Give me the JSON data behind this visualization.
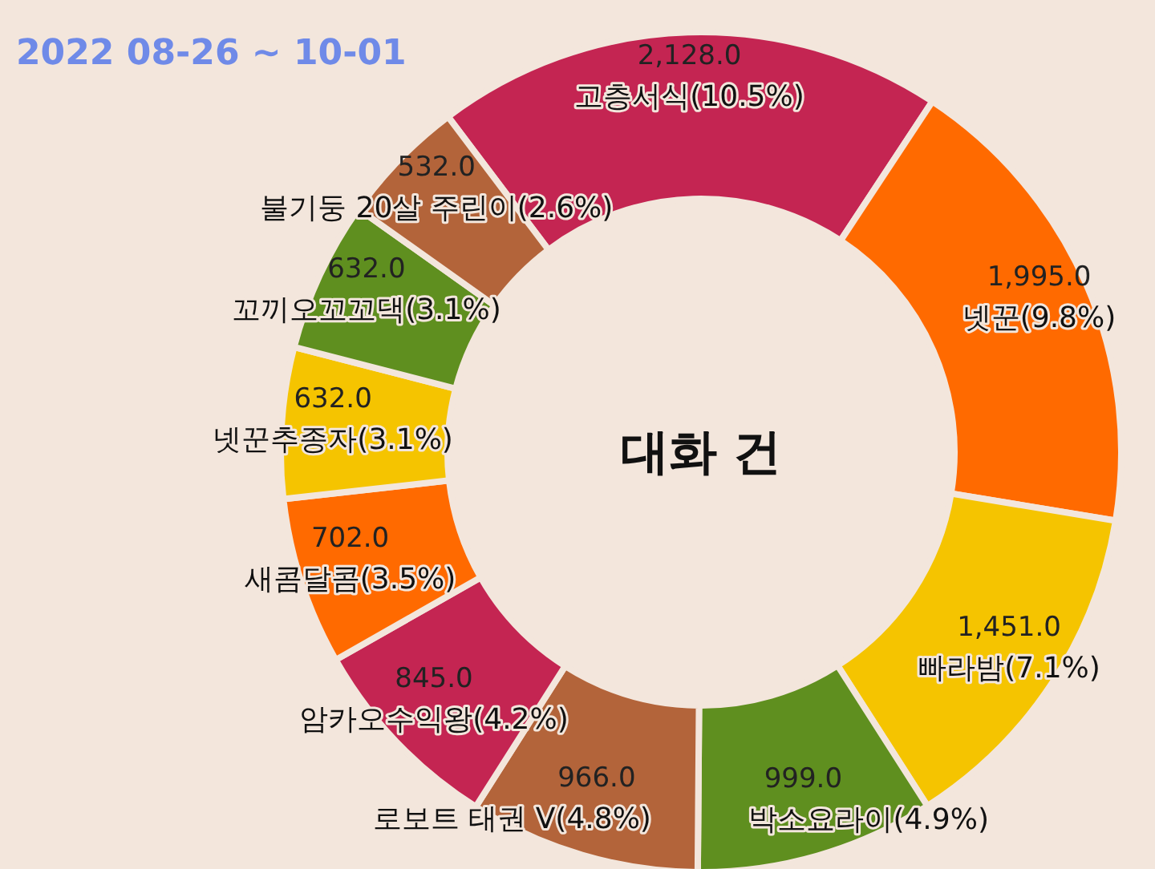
{
  "chart_data": {
    "type": "donut",
    "title": "대화 건",
    "categories": [
      "고층서식(10.5%)",
      "넷꾼(9.8%)",
      "빠라밤(7.1%)",
      "박소요라이(4.9%)",
      "로보트 태권 V(4.8%)",
      "암카오수익왕(4.2%)",
      "새콤달콤(3.5%)",
      "넷꾼추종자(3.1%)",
      "꼬끼오꼬꼬댁(3.1%)",
      "불기둥 20살 주린이(2.6%)"
    ],
    "values": [
      2128,
      1995,
      1451,
      999,
      966,
      845,
      702,
      632,
      632,
      532
    ],
    "value_labels": [
      "2,128.0",
      "1,995.0",
      "1,451.0",
      "999.0",
      "966.0",
      "845.0",
      "702.0",
      "632.0",
      "632.0",
      "532.0"
    ],
    "colors": [
      "#c42552",
      "#ff6a00",
      "#f5c400",
      "#5f8f1f",
      "#b3643a",
      "#c42552",
      "#ff6a00",
      "#f5c400",
      "#5f8f1f",
      "#b3643a"
    ],
    "annotations": [
      "2022 08-26 ~ 10-01"
    ]
  }
}
